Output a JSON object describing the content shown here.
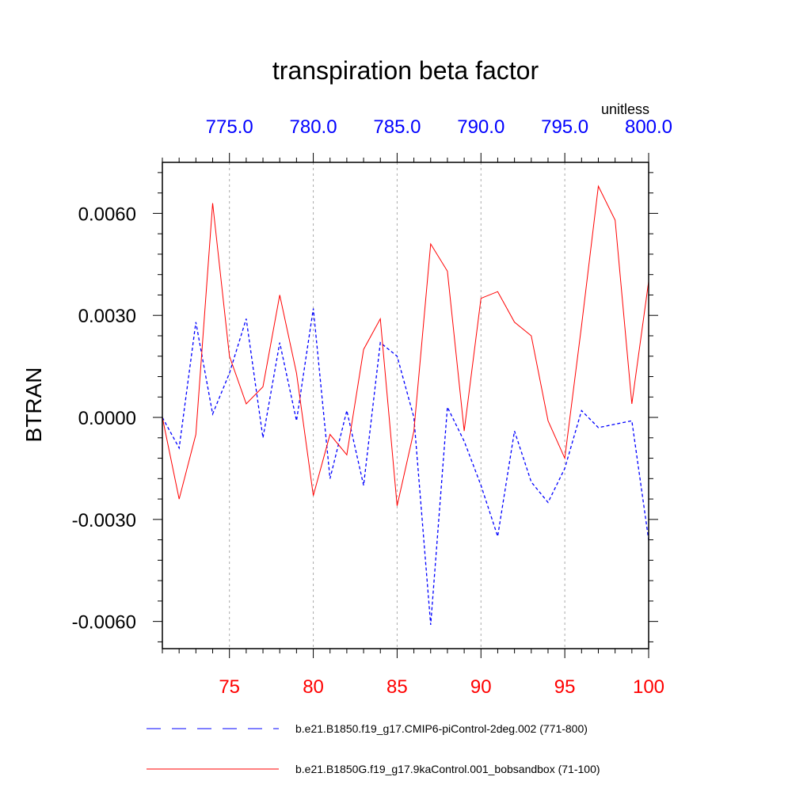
{
  "chart_data": {
    "type": "line",
    "title": "transpiration beta factor",
    "ylabel": "BTRAN",
    "units_label": "unitless",
    "ylim": [
      -0.0068,
      0.0075
    ],
    "xlim": [
      71,
      100
    ],
    "yticks": [
      -0.006,
      -0.003,
      0.0,
      0.003,
      0.006
    ],
    "ytick_labels": [
      "-0.0060",
      "-0.0030",
      "0.0000",
      "0.0030",
      "0.0060"
    ],
    "x_bottom_ticks": [
      75,
      80,
      85,
      90,
      95,
      100
    ],
    "x_bottom_labels": [
      "75",
      "80",
      "85",
      "90",
      "95",
      "100"
    ],
    "x_bottom_color": "#ff0000",
    "x_top_ticks": [
      775,
      780,
      785,
      790,
      795,
      800
    ],
    "x_top_labels": [
      "775.0",
      "780.0",
      "785.0",
      "790.0",
      "795.0",
      "800.0"
    ],
    "x_top_offset": 700,
    "x_top_color": "#0000ff",
    "grid": "vertical-dotted",
    "legend_position": "bottom",
    "series": [
      {
        "name": "b.e21.B1850.f19_g17.CMIP6-piControl-2deg.002 (771-800)",
        "color": "#0000ff",
        "style": "dashed",
        "x": [
          771,
          772,
          773,
          774,
          775,
          776,
          777,
          778,
          779,
          780,
          781,
          782,
          783,
          784,
          785,
          786,
          787,
          788,
          789,
          790,
          791,
          792,
          793,
          794,
          795,
          796,
          797,
          798,
          799,
          800
        ],
        "values": [
          0.0,
          -0.0009,
          0.0028,
          0.0001,
          0.0013,
          0.0029,
          -0.0006,
          0.0022,
          -0.0001,
          0.0032,
          -0.0018,
          0.0002,
          -0.002,
          0.0022,
          0.0018,
          0.0,
          -0.0061,
          0.0003,
          -0.0007,
          -0.002,
          -0.0035,
          -0.0004,
          -0.0019,
          -0.0025,
          -0.0015,
          0.0002,
          -0.0003,
          -0.0002,
          -0.0001,
          -0.0036
        ]
      },
      {
        "name": "b.e21.B1850G.f19_g17.9kaControl.001_bobsandbox (71-100)",
        "color": "#ff0000",
        "style": "solid",
        "x": [
          71,
          72,
          73,
          74,
          75,
          76,
          77,
          78,
          79,
          80,
          81,
          82,
          83,
          84,
          85,
          86,
          87,
          88,
          89,
          90,
          91,
          92,
          93,
          94,
          95,
          96,
          97,
          98,
          99,
          100
        ],
        "values": [
          0.0,
          -0.0024,
          -0.0005,
          0.0063,
          0.0018,
          0.0004,
          0.0009,
          0.0036,
          0.0013,
          -0.0023,
          -0.0005,
          -0.0011,
          0.002,
          0.0029,
          -0.0026,
          -0.0004,
          0.0051,
          0.0043,
          -0.0004,
          0.0035,
          0.0037,
          0.0028,
          0.0024,
          -0.0001,
          -0.0012,
          0.0027,
          0.0068,
          0.0058,
          0.0004,
          0.004
        ]
      }
    ]
  }
}
